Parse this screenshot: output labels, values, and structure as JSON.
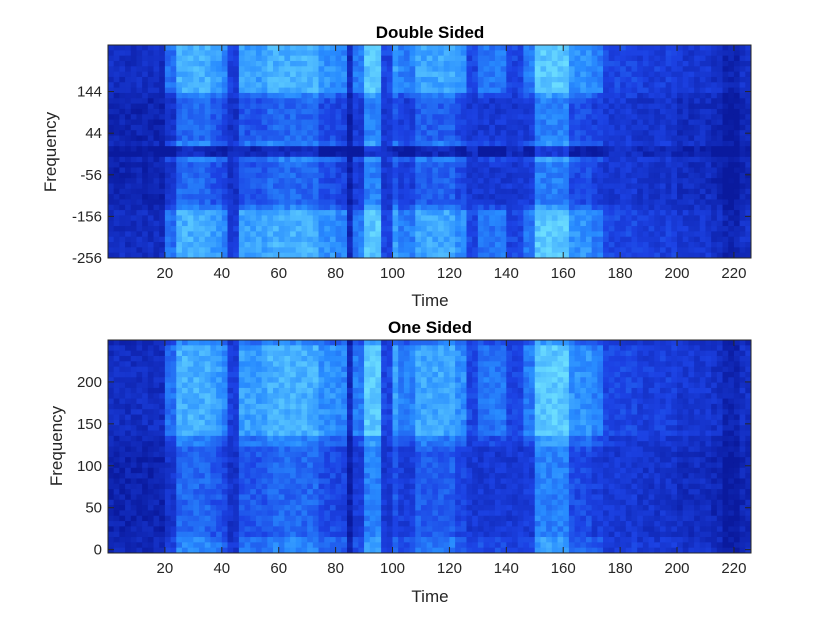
{
  "colors": {
    "dark": "#0a1a9e",
    "mid": "#1f4fe6",
    "bright": "#40b8ff",
    "white": "#ffffff"
  },
  "chart_data": [
    {
      "type": "heatmap",
      "title": "Double Sided",
      "xlabel": "Time",
      "ylabel": "Frequency",
      "xlim": [
        0,
        226
      ],
      "ylim": [
        -256,
        256
      ],
      "xticks": [
        20,
        40,
        60,
        80,
        100,
        120,
        140,
        160,
        180,
        200,
        220
      ],
      "yticks": [
        -256,
        -156,
        -56,
        44,
        144
      ],
      "colormap": "blue-cyan",
      "symmetric_about_zero": true
    },
    {
      "type": "heatmap",
      "title": "One Sided",
      "xlabel": "Time",
      "ylabel": "Frequency",
      "xlim": [
        0,
        226
      ],
      "ylim": [
        -4,
        250
      ],
      "xticks": [
        20,
        40,
        60,
        80,
        100,
        120,
        140,
        160,
        180,
        200,
        220
      ],
      "yticks": [
        0,
        50,
        100,
        150,
        200
      ],
      "colormap": "blue-cyan",
      "symmetric_about_zero": false
    }
  ]
}
